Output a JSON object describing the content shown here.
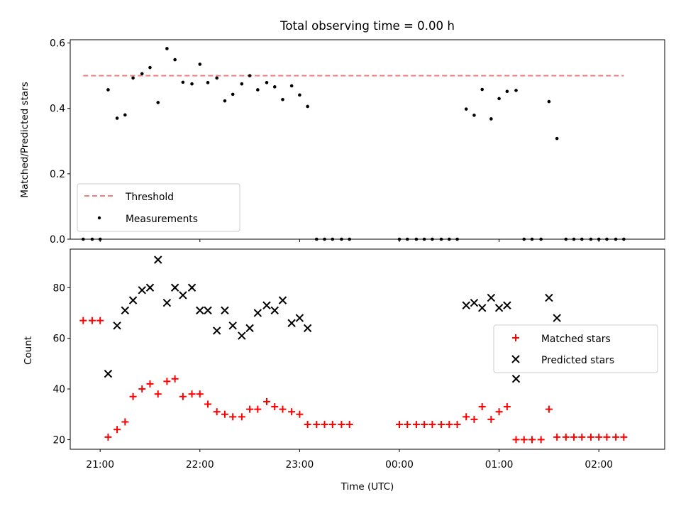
{
  "figure": {
    "title": "Total observing time = 0.00 h",
    "xlabel": "Time (UTC)",
    "colors": {
      "threshold": "#f08080",
      "measurement": "#000000",
      "matched": "#ff0000",
      "predicted": "#000000",
      "axes": "#000000"
    }
  },
  "chart_data": [
    {
      "type": "scatter",
      "title": "Total observing time = 0.00 h",
      "ylabel": "Matched/Predicted stars",
      "xlabel": "",
      "x_unit": "UTC time (hours after midnight of first evening)",
      "xlim": [
        20.7,
        26.66
      ],
      "ylim": [
        0.0,
        0.61
      ],
      "x_ticks": [
        {
          "x": 21,
          "label": "21:00"
        },
        {
          "x": 22,
          "label": "22:00"
        },
        {
          "x": 23,
          "label": "23:00"
        },
        {
          "x": 24,
          "label": "00:00"
        },
        {
          "x": 25,
          "label": "01:00"
        },
        {
          "x": 26,
          "label": "02:00"
        }
      ],
      "y_ticks": [
        {
          "y": 0.0,
          "label": "0.0"
        },
        {
          "y": 0.2,
          "label": "0.2"
        },
        {
          "y": 0.4,
          "label": "0.4"
        },
        {
          "y": 0.6,
          "label": "0.6"
        }
      ],
      "grid": false,
      "legend_position": "lower-left",
      "threshold": {
        "name": "Threshold",
        "y": 0.5,
        "x_range": [
          20.83,
          26.25
        ]
      },
      "series": [
        {
          "name": "Measurements",
          "marker": "dot",
          "x": [
            20.83,
            20.92,
            21.0,
            21.08,
            21.17,
            21.25,
            21.33,
            21.42,
            21.5,
            21.58,
            21.67,
            21.75,
            21.83,
            21.92,
            22.0,
            22.08,
            22.17,
            22.25,
            22.33,
            22.42,
            22.5,
            22.58,
            22.67,
            22.75,
            22.83,
            22.92,
            23.0,
            23.08,
            23.17,
            23.25,
            23.33,
            23.42,
            23.5,
            24.0,
            24.08,
            24.17,
            24.25,
            24.33,
            24.42,
            24.5,
            24.58,
            24.67,
            24.75,
            24.83,
            24.92,
            25.0,
            25.08,
            25.17,
            25.25,
            25.33,
            25.42,
            25.5,
            25.58,
            25.67,
            25.75,
            25.83,
            25.92,
            26.0,
            26.08,
            26.17,
            26.25
          ],
          "y": [
            0.0,
            0.0,
            0.0,
            0.457,
            0.37,
            0.38,
            0.493,
            0.506,
            0.525,
            0.418,
            0.583,
            0.549,
            0.48,
            0.475,
            0.535,
            0.479,
            0.493,
            0.423,
            0.443,
            0.475,
            0.5,
            0.457,
            0.479,
            0.466,
            0.427,
            0.469,
            0.441,
            0.406,
            0.0,
            0.0,
            0.0,
            0.0,
            0.0,
            0.0,
            0.0,
            0.0,
            0.0,
            0.0,
            0.0,
            0.0,
            0.0,
            0.398,
            0.379,
            0.458,
            0.368,
            0.43,
            0.452,
            0.455,
            0.0,
            0.0,
            0.0,
            0.421,
            0.308,
            0.0,
            0.0,
            0.0,
            0.0,
            0.0,
            0.0,
            0.0,
            0.0
          ]
        }
      ]
    },
    {
      "type": "scatter",
      "ylabel": "Count",
      "xlabel": "Time (UTC)",
      "x_unit": "UTC time (hours after midnight of first evening)",
      "xlim": [
        20.7,
        26.66
      ],
      "ylim": [
        16.2,
        95.2
      ],
      "x_ticks": [
        {
          "x": 21,
          "label": "21:00"
        },
        {
          "x": 22,
          "label": "22:00"
        },
        {
          "x": 23,
          "label": "23:00"
        },
        {
          "x": 24,
          "label": "00:00"
        },
        {
          "x": 25,
          "label": "01:00"
        },
        {
          "x": 26,
          "label": "02:00"
        }
      ],
      "y_ticks": [
        {
          "y": 20,
          "label": "20"
        },
        {
          "y": 40,
          "label": "40"
        },
        {
          "y": 60,
          "label": "60"
        },
        {
          "y": 80,
          "label": "80"
        }
      ],
      "grid": false,
      "legend_position": "center-right",
      "series": [
        {
          "name": "Matched stars",
          "marker": "plus",
          "x": [
            20.83,
            20.92,
            21.0,
            21.08,
            21.17,
            21.25,
            21.33,
            21.42,
            21.5,
            21.58,
            21.67,
            21.75,
            21.83,
            21.92,
            22.0,
            22.08,
            22.17,
            22.25,
            22.33,
            22.42,
            22.5,
            22.58,
            22.67,
            22.75,
            22.83,
            22.92,
            23.0,
            23.08,
            23.17,
            23.25,
            23.33,
            23.42,
            23.5,
            24.0,
            24.08,
            24.17,
            24.25,
            24.33,
            24.42,
            24.5,
            24.58,
            24.67,
            24.75,
            24.83,
            24.92,
            25.0,
            25.08,
            25.17,
            25.25,
            25.33,
            25.42,
            25.5,
            25.58,
            25.67,
            25.75,
            25.83,
            25.92,
            26.0,
            26.08,
            26.17,
            26.25
          ],
          "y": [
            67,
            67,
            67,
            21,
            24,
            27,
            37,
            40,
            42,
            38,
            43,
            44,
            37,
            38,
            38,
            34,
            31,
            30,
            29,
            29,
            32,
            32,
            35,
            33,
            32,
            31,
            30,
            26,
            26,
            26,
            26,
            26,
            26,
            26,
            26,
            26,
            26,
            26,
            26,
            26,
            26,
            29,
            28,
            33,
            28,
            31,
            33,
            20,
            20,
            20,
            20,
            32,
            21,
            21,
            21,
            21,
            21,
            21,
            21,
            21,
            21
          ]
        },
        {
          "name": "Predicted stars",
          "marker": "x",
          "x": [
            21.08,
            21.17,
            21.25,
            21.33,
            21.42,
            21.5,
            21.58,
            21.67,
            21.75,
            21.83,
            21.92,
            22.0,
            22.08,
            22.17,
            22.25,
            22.33,
            22.42,
            22.5,
            22.58,
            22.67,
            22.75,
            22.83,
            22.92,
            23.0,
            23.08,
            24.67,
            24.75,
            24.83,
            24.92,
            25.0,
            25.08,
            25.17,
            25.5,
            25.58
          ],
          "y": [
            46,
            65,
            71,
            75,
            79,
            80,
            91,
            74,
            80,
            77,
            80,
            71,
            71,
            63,
            71,
            65,
            61,
            64,
            70,
            73,
            71,
            75,
            66,
            68,
            64,
            73,
            74,
            72,
            76,
            72,
            73,
            44,
            76,
            68
          ]
        }
      ]
    }
  ]
}
